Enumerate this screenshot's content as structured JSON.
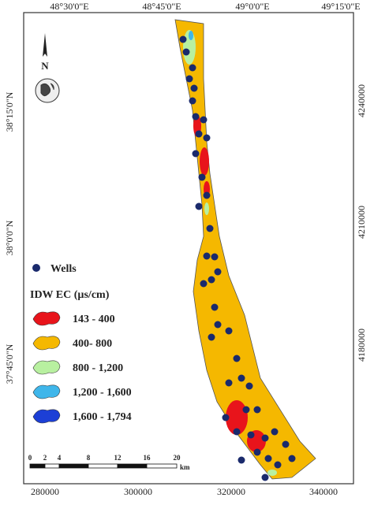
{
  "map": {
    "graticule": {
      "top": [
        "48°30'0\"E",
        "48°45'0\"E",
        "49°0'0\"E",
        "49°15'0\"E"
      ],
      "left": [
        "38°15'0\"N",
        "38°0'0\"N",
        "37°45'0\"N"
      ],
      "right": [
        "4240000",
        "4210000",
        "4180000"
      ],
      "bottom": [
        "280000",
        "300000",
        "320000",
        "340000"
      ]
    },
    "north": "N",
    "legend": {
      "wells": "Wells",
      "title": "IDW EC (µs/cm)",
      "classes": [
        {
          "label": "143 - 400",
          "color": "#e8141b"
        },
        {
          "label": "400- 800",
          "color": "#f5b800"
        },
        {
          "label": "800 - 1,200",
          "color": "#b8f0a0"
        },
        {
          "label": "1,200 - 1,600",
          "color": "#3fb6ea"
        },
        {
          "label": "1,600 - 1,794",
          "color": "#1c3fd6"
        }
      ]
    },
    "scale_bar": {
      "ticks": [
        "0",
        "2",
        "4",
        "8",
        "12",
        "16",
        "20"
      ],
      "unit": "km"
    }
  }
}
